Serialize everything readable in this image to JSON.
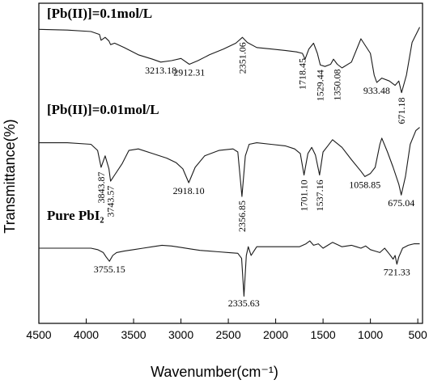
{
  "chart_data": {
    "type": "line",
    "xlabel": "Wavenumber(cm⁻¹)",
    "ylabel": "Transmittance(%)",
    "xlim": [
      4500,
      450
    ],
    "x_reversed": true,
    "x_ticks": [
      4500,
      4000,
      3500,
      3000,
      2500,
      2000,
      1500,
      1000,
      500
    ],
    "y_ticks_shown": false,
    "series": [
      {
        "name": "[Pb(II)]=0.1mol/L",
        "x": [
          4500,
          4200,
          3950,
          3860,
          3843,
          3800,
          3760,
          3743,
          3700,
          3600,
          3450,
          3300,
          3213,
          3100,
          3000,
          2912,
          2820,
          2700,
          2550,
          2420,
          2351,
          2300,
          2200,
          2050,
          1900,
          1780,
          1718,
          1690,
          1650,
          1600,
          1560,
          1529,
          1480,
          1420,
          1390,
          1350,
          1300,
          1200,
          1100,
          1000,
          960,
          933,
          880,
          800,
          740,
          700,
          671,
          620,
          560,
          480
        ],
        "y": [
          93,
          92,
          90,
          86,
          78,
          82,
          77,
          72,
          74,
          68,
          58,
          52,
          48,
          50,
          53,
          45,
          50,
          58,
          66,
          74,
          82,
          75,
          68,
          66,
          64,
          62,
          60,
          52,
          66,
          74,
          60,
          44,
          42,
          45,
          52,
          45,
          40,
          48,
          80,
          60,
          30,
          20,
          26,
          22,
          16,
          22,
          6,
          30,
          75,
          96
        ],
        "peak_labels": [
          {
            "x": 3213.18,
            "text": "3213.18"
          },
          {
            "x": 2912.31,
            "text": "2912.31"
          },
          {
            "x": 2351.06,
            "text": "2351.06"
          },
          {
            "x": 1718.45,
            "text": "1718.45"
          },
          {
            "x": 1529.44,
            "text": "1529.44"
          },
          {
            "x": 1350.08,
            "text": "1350.08"
          },
          {
            "x": 933.48,
            "text": "933.48"
          },
          {
            "x": 671.18,
            "text": "671.18"
          }
        ]
      },
      {
        "name": "[Pb(II)]=0.01mol/L",
        "x": [
          4500,
          4200,
          3950,
          3880,
          3843,
          3800,
          3760,
          3743,
          3700,
          3620,
          3550,
          3450,
          3300,
          3150,
          3050,
          2980,
          2918,
          2850,
          2750,
          2600,
          2450,
          2400,
          2356,
          2320,
          2280,
          2200,
          2050,
          1900,
          1800,
          1740,
          1701,
          1660,
          1620,
          1580,
          1537,
          1500,
          1450,
          1400,
          1300,
          1200,
          1100,
          1058,
          1000,
          950,
          900,
          880,
          820,
          760,
          700,
          675,
          630,
          580,
          520,
          480
        ],
        "y": [
          72,
          72,
          70,
          62,
          40,
          55,
          38,
          22,
          30,
          45,
          62,
          64,
          58,
          52,
          46,
          38,
          20,
          40,
          55,
          62,
          64,
          60,
          2,
          55,
          70,
          72,
          70,
          68,
          64,
          58,
          30,
          58,
          66,
          56,
          30,
          60,
          68,
          76,
          66,
          50,
          35,
          28,
          32,
          40,
          70,
          78,
          60,
          40,
          18,
          4,
          28,
          70,
          88,
          92
        ],
        "peak_labels": [
          {
            "x": 3843.87,
            "text": "3843.87"
          },
          {
            "x": 3743.57,
            "text": "3743.57"
          },
          {
            "x": 2918.1,
            "text": "2918.10"
          },
          {
            "x": 2356.85,
            "text": "2356.85"
          },
          {
            "x": 1701.1,
            "text": "1701.10"
          },
          {
            "x": 1537.16,
            "text": "1537.16"
          },
          {
            "x": 1058.85,
            "text": "1058.85"
          },
          {
            "x": 675.04,
            "text": "675.04"
          }
        ]
      },
      {
        "name": "Pure PbI₂",
        "x": [
          4500,
          4200,
          3950,
          3880,
          3820,
          3790,
          3755,
          3720,
          3680,
          3600,
          3500,
          3400,
          3300,
          3200,
          3100,
          3000,
          2900,
          2800,
          2700,
          2600,
          2500,
          2400,
          2360,
          2335,
          2310,
          2290,
          2260,
          2230,
          2200,
          2050,
          1900,
          1750,
          1680,
          1640,
          1600,
          1550,
          1500,
          1450,
          1400,
          1300,
          1200,
          1150,
          1100,
          1050,
          1000,
          950,
          900,
          850,
          800,
          760,
          740,
          721,
          700,
          660,
          600,
          540,
          480
        ],
        "y": [
          70,
          70,
          70,
          68,
          64,
          58,
          52,
          60,
          64,
          66,
          68,
          70,
          72,
          74,
          73,
          71,
          69,
          67,
          66,
          65,
          64,
          63,
          56,
          4,
          60,
          72,
          60,
          66,
          72,
          72,
          72,
          72,
          76,
          80,
          74,
          76,
          70,
          74,
          78,
          72,
          74,
          72,
          70,
          73,
          68,
          66,
          64,
          70,
          62,
          55,
          60,
          48,
          58,
          70,
          74,
          76,
          76
        ],
        "peak_labels": [
          {
            "x": 3755.15,
            "text": "3755.15"
          },
          {
            "x": 2335.63,
            "text": "2335.63"
          },
          {
            "x": 721.33,
            "text": "721.33"
          }
        ]
      }
    ]
  }
}
